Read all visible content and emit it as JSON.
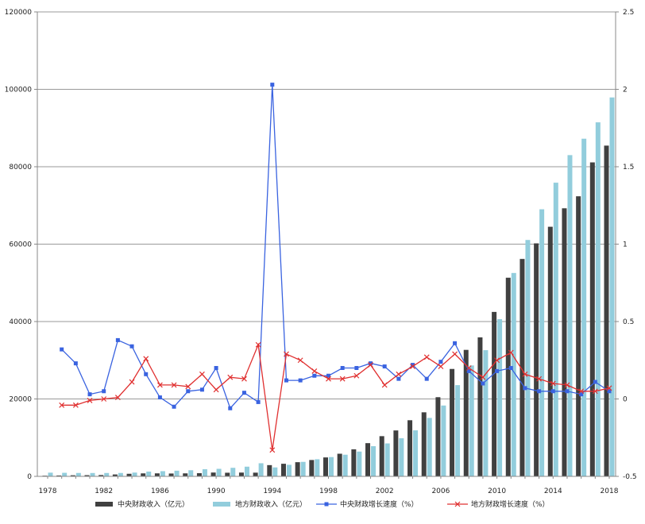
{
  "chart_data": {
    "type": "bar+line",
    "title": "",
    "xlabel": "",
    "ylabel": "",
    "ylim": [
      0,
      120000
    ],
    "y2lim": [
      -0.5,
      2.5
    ],
    "y_ticks": [
      "0",
      "20000",
      "40000",
      "60000",
      "80000",
      "100000",
      "120000"
    ],
    "y2_ticks": [
      "-0.5",
      "0",
      "0.5",
      "1",
      "1.5",
      "2",
      "2.5"
    ],
    "x_tick_labels": [
      "1978",
      "1982",
      "1986",
      "1990",
      "1994",
      "1998",
      "2002",
      "2006",
      "2010",
      "2014",
      "2018"
    ],
    "grid": "horizontal",
    "legend_position": "bottom",
    "years": [
      1978,
      1979,
      1980,
      1981,
      1982,
      1983,
      1984,
      1985,
      1986,
      1987,
      1988,
      1989,
      1990,
      1991,
      1992,
      1993,
      1994,
      1995,
      1996,
      1997,
      1998,
      1999,
      2000,
      2001,
      2002,
      2003,
      2004,
      2005,
      2006,
      2007,
      2008,
      2009,
      2010,
      2011,
      2012,
      2013,
      2014,
      2015,
      2016,
      2017,
      2018
    ],
    "series": [
      {
        "name": "中央财政收入（亿元）",
        "kind": "bar",
        "axis": "left",
        "color": "#404040",
        "values": [
          176,
          232,
          284,
          311,
          347,
          490,
          666,
          770,
          778,
          736,
          775,
          823,
          992,
          938,
          980,
          958,
          2907,
          3257,
          3661,
          4227,
          4892,
          5849,
          6989,
          8583,
          10389,
          11865,
          14503,
          16549,
          20457,
          27749,
          32681,
          35916,
          42488,
          51327,
          56175,
          60199,
          64493,
          69267,
          72366,
          81123,
          85456
        ]
      },
      {
        "name": "地方财政收入（亿元）",
        "kind": "bar",
        "axis": "right-bar",
        "color": "#92CDDC",
        "values": [
          956,
          915,
          875,
          865,
          866,
          877,
          977,
          1235,
          1344,
          1464,
          1583,
          1843,
          1945,
          2212,
          2504,
          3391,
          2312,
          2986,
          3747,
          4424,
          4984,
          5595,
          6406,
          7803,
          8515,
          9850,
          11893,
          15101,
          18304,
          23573,
          28650,
          32603,
          40613,
          52547,
          61078,
          69011,
          75877,
          83002,
          87239,
          91469,
          97903
        ]
      },
      {
        "name": "中央财政增长速度（%）",
        "kind": "line",
        "axis": "right",
        "color": "#3A63E0",
        "marker": "square",
        "values": [
          null,
          0.32,
          0.23,
          0.03,
          0.05,
          0.38,
          0.34,
          0.16,
          0.01,
          -0.05,
          0.05,
          0.06,
          0.2,
          -0.06,
          0.04,
          -0.02,
          2.03,
          0.12,
          0.12,
          0.15,
          0.15,
          0.2,
          0.2,
          0.23,
          0.21,
          0.13,
          0.22,
          0.13,
          0.24,
          0.36,
          0.18,
          0.1,
          0.18,
          0.2,
          0.07,
          0.05,
          0.05,
          0.05,
          0.03,
          0.11,
          0.05
        ]
      },
      {
        "name": "地方财政增长速度（%）",
        "kind": "line",
        "axis": "right",
        "color": "#E03030",
        "marker": "x",
        "values": [
          null,
          -0.04,
          -0.04,
          -0.01,
          0.0,
          0.01,
          0.11,
          0.26,
          0.09,
          0.09,
          0.08,
          0.16,
          0.06,
          0.14,
          0.13,
          0.35,
          -0.33,
          0.29,
          0.25,
          0.18,
          0.13,
          0.13,
          0.15,
          0.22,
          0.09,
          0.16,
          0.21,
          0.27,
          0.21,
          0.29,
          0.2,
          0.14,
          0.25,
          0.3,
          0.16,
          0.13,
          0.1,
          0.09,
          0.05,
          0.05,
          0.07
        ]
      }
    ]
  }
}
